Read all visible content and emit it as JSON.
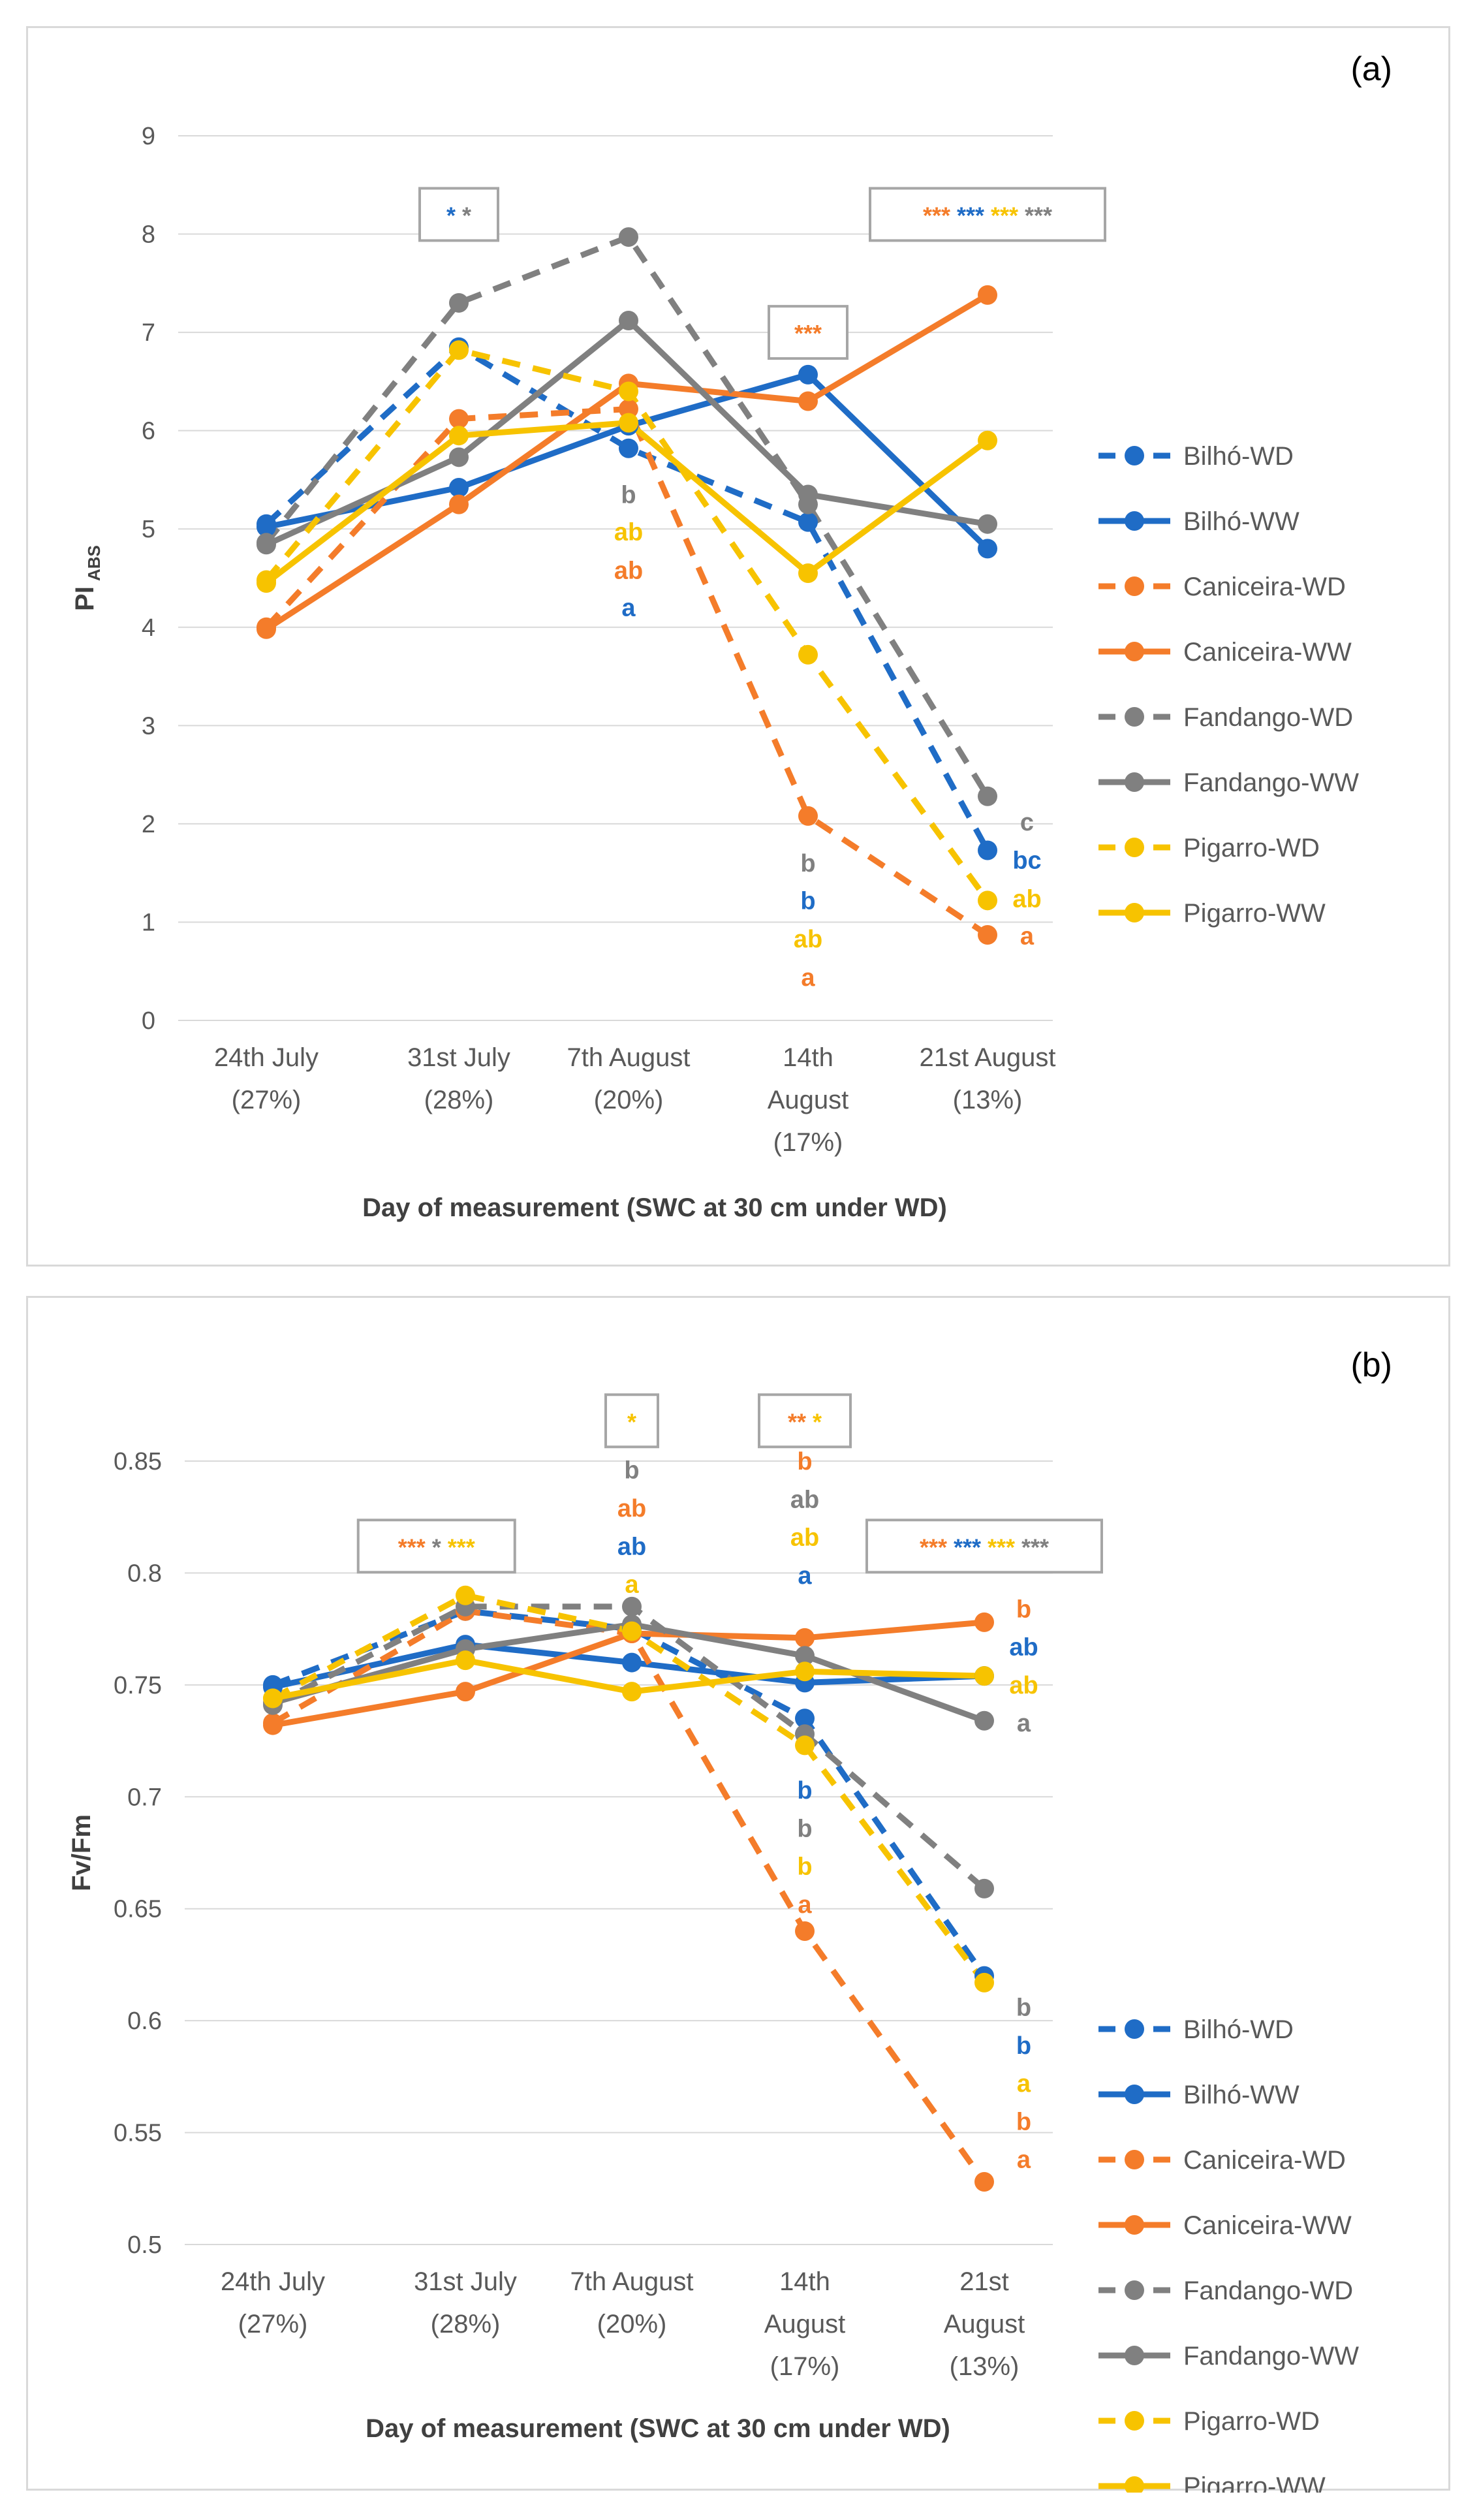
{
  "colors": {
    "Bilhó": "#1f6cc6",
    "Caniceira": "#f47c2a",
    "Fandango": "#808080",
    "Pigarro": "#f7c300",
    "grid": "#d9d9d9",
    "axis_text": "#595959",
    "title_text": "#404040"
  },
  "chart_data": [
    {
      "id": "a",
      "type": "line",
      "panel_label": "(a)",
      "ylabel": "PI",
      "ylabel_sub": "ABS",
      "xlabel": "Day of measurement (SWC at 30 cm under WD)",
      "ylim": [
        0,
        9
      ],
      "yticks": [
        "0",
        "1",
        "2",
        "3",
        "4",
        "5",
        "6",
        "7",
        "8",
        "9"
      ],
      "categories": [
        [
          "24th July",
          "(27%)"
        ],
        [
          "31st July",
          "(28%)"
        ],
        [
          "7th August",
          "(20%)"
        ],
        [
          "14th",
          "August",
          "(17%)"
        ],
        [
          "21st August",
          "(13%)"
        ]
      ],
      "series": [
        {
          "name": "Bilhó-WD",
          "cultivar": "Bilhó",
          "dashed": true,
          "values": [
            5.05,
            6.85,
            5.82,
            5.07,
            1.73
          ]
        },
        {
          "name": "Bilhó-WW",
          "cultivar": "Bilhó",
          "dashed": false,
          "values": [
            5.02,
            5.42,
            6.05,
            6.57,
            4.8
          ]
        },
        {
          "name": "Caniceira-WD",
          "cultivar": "Caniceira",
          "dashed": true,
          "values": [
            4.0,
            6.12,
            6.22,
            2.08,
            0.87
          ]
        },
        {
          "name": "Caniceira-WW",
          "cultivar": "Caniceira",
          "dashed": false,
          "values": [
            3.98,
            5.25,
            6.48,
            6.3,
            7.38
          ]
        },
        {
          "name": "Fandango-WD",
          "cultivar": "Fandango",
          "dashed": true,
          "values": [
            4.86,
            7.3,
            7.97,
            5.25,
            2.28
          ]
        },
        {
          "name": "Fandango-WW",
          "cultivar": "Fandango",
          "dashed": false,
          "values": [
            4.84,
            5.73,
            7.12,
            5.35,
            5.05
          ]
        },
        {
          "name": "Pigarro-WD",
          "cultivar": "Pigarro",
          "dashed": true,
          "values": [
            4.48,
            6.82,
            6.4,
            3.72,
            1.22
          ]
        },
        {
          "name": "Pigarro-WW",
          "cultivar": "Pigarro",
          "dashed": false,
          "values": [
            4.45,
            5.95,
            6.08,
            4.55,
            5.9
          ]
        }
      ],
      "sig_boxes": [
        {
          "x": 1.0,
          "y": 8.2,
          "marks": [
            {
              "t": "*",
              "c": "Bilhó"
            },
            {
              "t": "*",
              "c": "Fandango"
            }
          ]
        },
        {
          "x": 3.0,
          "y": 7.0,
          "marks": [
            {
              "t": "***",
              "c": "Caniceira"
            }
          ]
        },
        {
          "x": 4.0,
          "y": 8.2,
          "marks": [
            {
              "t": "***",
              "c": "Caniceira"
            },
            {
              "t": "***",
              "c": "Bilhó"
            },
            {
              "t": "***",
              "c": "Pigarro"
            },
            {
              "t": "***",
              "c": "Fandango"
            }
          ]
        }
      ],
      "letters": [
        {
          "x": 2.0,
          "y": 5.35,
          "t": "b",
          "c": "Fandango"
        },
        {
          "x": 2.0,
          "y": 4.97,
          "t": "ab",
          "c": "Pigarro"
        },
        {
          "x": 2.0,
          "y": 4.58,
          "t": "ab",
          "c": "Caniceira"
        },
        {
          "x": 2.0,
          "y": 4.2,
          "t": "a",
          "c": "Bilhó"
        },
        {
          "x": 3.0,
          "y": 1.6,
          "t": "b",
          "c": "Fandango"
        },
        {
          "x": 3.0,
          "y": 1.22,
          "t": "b",
          "c": "Bilhó"
        },
        {
          "x": 3.0,
          "y": 0.83,
          "t": "ab",
          "c": "Pigarro"
        },
        {
          "x": 3.0,
          "y": 0.44,
          "t": "a",
          "c": "Caniceira"
        },
        {
          "x": 4.22,
          "y": 2.02,
          "t": "c",
          "c": "Fandango"
        },
        {
          "x": 4.22,
          "y": 1.63,
          "t": "bc",
          "c": "Bilhó"
        },
        {
          "x": 4.22,
          "y": 1.24,
          "t": "ab",
          "c": "Pigarro"
        },
        {
          "x": 4.22,
          "y": 0.86,
          "t": "a",
          "c": "Caniceira"
        }
      ]
    },
    {
      "id": "b",
      "type": "line",
      "panel_label": "(b)",
      "ylabel": "Fv/Fm",
      "ylabel_sub": "",
      "xlabel": "Day of measurement (SWC at 30 cm under WD)",
      "ylim": [
        0.5,
        0.85
      ],
      "yticks": [
        "0.5",
        "0.55",
        "0.6",
        "0.65",
        "0.7",
        "0.75",
        "0.8",
        "0.85"
      ],
      "categories": [
        [
          "24th July",
          "(27%)"
        ],
        [
          "31st July",
          "(28%)"
        ],
        [
          "7th August",
          "(20%)"
        ],
        [
          "14th",
          "August",
          "(17%)"
        ],
        [
          "21st",
          "August",
          "(13%)"
        ]
      ],
      "series": [
        {
          "name": "Bilhó-WD",
          "cultivar": "Bilhó",
          "dashed": true,
          "values": [
            0.75,
            0.783,
            0.775,
            0.735,
            0.62
          ]
        },
        {
          "name": "Bilhó-WW",
          "cultivar": "Bilhó",
          "dashed": false,
          "values": [
            0.749,
            0.768,
            0.76,
            0.751,
            0.754
          ]
        },
        {
          "name": "Caniceira-WD",
          "cultivar": "Caniceira",
          "dashed": true,
          "values": [
            0.733,
            0.783,
            0.773,
            0.64,
            0.528
          ]
        },
        {
          "name": "Caniceira-WW",
          "cultivar": "Caniceira",
          "dashed": false,
          "values": [
            0.732,
            0.747,
            0.773,
            0.771,
            0.778
          ]
        },
        {
          "name": "Fandango-WD",
          "cultivar": "Fandango",
          "dashed": true,
          "values": [
            0.741,
            0.785,
            0.785,
            0.728,
            0.659
          ]
        },
        {
          "name": "Fandango-WW",
          "cultivar": "Fandango",
          "dashed": false,
          "values": [
            0.742,
            0.766,
            0.777,
            0.763,
            0.734
          ]
        },
        {
          "name": "Pigarro-WD",
          "cultivar": "Pigarro",
          "dashed": true,
          "values": [
            0.744,
            0.79,
            0.774,
            0.723,
            0.617
          ]
        },
        {
          "name": "Pigarro-WW",
          "cultivar": "Pigarro",
          "dashed": false,
          "values": [
            0.744,
            0.761,
            0.747,
            0.756,
            0.754
          ]
        }
      ],
      "sig_boxes": [
        {
          "x": 0.85,
          "y": 0.812,
          "marks": [
            {
              "t": "***",
              "c": "Caniceira"
            },
            {
              "t": "*",
              "c": "Fandango"
            },
            {
              "t": "***",
              "c": "Pigarro"
            }
          ]
        },
        {
          "x": 2.0,
          "y": 0.868,
          "marks": [
            {
              "t": "*",
              "c": "Pigarro"
            }
          ]
        },
        {
          "x": 3.0,
          "y": 0.868,
          "marks": [
            {
              "t": "**",
              "c": "Caniceira"
            },
            {
              "t": "*",
              "c": "Pigarro"
            }
          ]
        },
        {
          "x": 4.0,
          "y": 0.812,
          "marks": [
            {
              "t": "***",
              "c": "Caniceira"
            },
            {
              "t": "***",
              "c": "Bilhó"
            },
            {
              "t": "***",
              "c": "Pigarro"
            },
            {
              "t": "***",
              "c": "Fandango"
            }
          ]
        }
      ],
      "letters": [
        {
          "x": 2.0,
          "y": 0.846,
          "t": "b",
          "c": "Fandango"
        },
        {
          "x": 2.0,
          "y": 0.829,
          "t": "ab",
          "c": "Caniceira"
        },
        {
          "x": 2.0,
          "y": 0.812,
          "t": "ab",
          "c": "Bilhó"
        },
        {
          "x": 2.0,
          "y": 0.795,
          "t": "a",
          "c": "Pigarro"
        },
        {
          "x": 3.0,
          "y": 0.85,
          "t": "b",
          "c": "Caniceira"
        },
        {
          "x": 3.0,
          "y": 0.833,
          "t": "ab",
          "c": "Fandango"
        },
        {
          "x": 3.0,
          "y": 0.816,
          "t": "ab",
          "c": "Pigarro"
        },
        {
          "x": 3.0,
          "y": 0.799,
          "t": "a",
          "c": "Bilhó"
        },
        {
          "x": 3.0,
          "y": 0.703,
          "t": "b",
          "c": "Bilhó"
        },
        {
          "x": 3.0,
          "y": 0.686,
          "t": "b",
          "c": "Fandango"
        },
        {
          "x": 3.0,
          "y": 0.669,
          "t": "b",
          "c": "Pigarro"
        },
        {
          "x": 3.0,
          "y": 0.652,
          "t": "a",
          "c": "Caniceira"
        },
        {
          "x": 4.22,
          "y": 0.784,
          "t": "b",
          "c": "Caniceira"
        },
        {
          "x": 4.22,
          "y": 0.767,
          "t": "ab",
          "c": "Bilhó"
        },
        {
          "x": 4.22,
          "y": 0.75,
          "t": "ab",
          "c": "Pigarro"
        },
        {
          "x": 4.22,
          "y": 0.733,
          "t": "a",
          "c": "Fandango"
        },
        {
          "x": 4.22,
          "y": 0.606,
          "t": "b",
          "c": "Fandango"
        },
        {
          "x": 4.22,
          "y": 0.589,
          "t": "b",
          "c": "Bilhó"
        },
        {
          "x": 4.22,
          "y": 0.572,
          "t": "a",
          "c": "Pigarro"
        },
        {
          "x": 4.22,
          "y": 0.555,
          "t": "b",
          "c": "Caniceira"
        },
        {
          "x": 4.22,
          "y": 0.538,
          "t": "a",
          "c": "Caniceira"
        }
      ]
    }
  ]
}
